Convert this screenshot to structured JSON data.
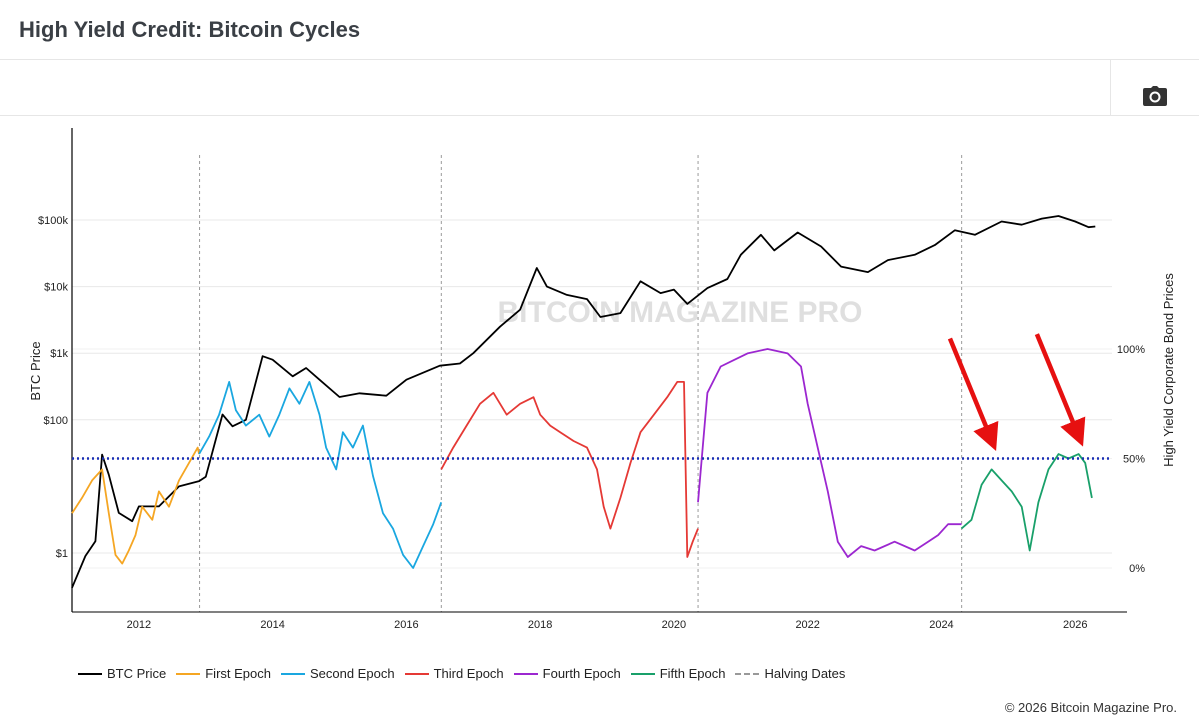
{
  "page": {
    "title": "High Yield Credit: Bitcoin Cycles",
    "footer": "© 2026 Bitcoin Magazine Pro.",
    "camera_icon": "camera-icon"
  },
  "chart_data": {
    "type": "line",
    "title": "High Yield Credit: Bitcoin Cycles",
    "xlabel": "",
    "ylabel": "BTC Price",
    "ylabel_right": "High Yield Corporate Bond Prices",
    "y_scale": "log",
    "x_ticks": [
      "2012",
      "2014",
      "2016",
      "2018",
      "2020",
      "2022",
      "2024",
      "2026"
    ],
    "y_ticks": [
      "$1",
      "$100",
      "$1k",
      "$10k",
      "$100k"
    ],
    "y_tick_values": [
      1,
      100,
      1000,
      10000,
      100000
    ],
    "y_right_ticks": [
      "0%",
      "50%",
      "100%"
    ],
    "y_right_tick_values": [
      0,
      50,
      100
    ],
    "ylim_right": [
      -15,
      135
    ],
    "reference_line": {
      "value": 50,
      "axis": "right",
      "color": "#1a2fb5",
      "style": "dotted"
    },
    "halving_dates": [
      "2012-11-28",
      "2016-07-09",
      "2020-05-11",
      "2024-04-20"
    ],
    "series": [
      {
        "name": "BTC Price",
        "color": "#000000",
        "axis": "left",
        "points": [
          [
            2011.0,
            0.3
          ],
          [
            2011.2,
            0.9
          ],
          [
            2011.35,
            1.5
          ],
          [
            2011.45,
            30
          ],
          [
            2011.55,
            15
          ],
          [
            2011.7,
            4
          ],
          [
            2011.9,
            3
          ],
          [
            2012.0,
            5
          ],
          [
            2012.3,
            5
          ],
          [
            2012.6,
            10
          ],
          [
            2012.9,
            12
          ],
          [
            2013.0,
            14
          ],
          [
            2013.25,
            120
          ],
          [
            2013.4,
            80
          ],
          [
            2013.6,
            100
          ],
          [
            2013.85,
            900
          ],
          [
            2014.0,
            800
          ],
          [
            2014.3,
            450
          ],
          [
            2014.5,
            600
          ],
          [
            2014.7,
            400
          ],
          [
            2015.0,
            220
          ],
          [
            2015.3,
            250
          ],
          [
            2015.7,
            230
          ],
          [
            2016.0,
            400
          ],
          [
            2016.5,
            650
          ],
          [
            2016.8,
            700
          ],
          [
            2017.0,
            1000
          ],
          [
            2017.4,
            2500
          ],
          [
            2017.7,
            4500
          ],
          [
            2017.95,
            19000
          ],
          [
            2018.1,
            10000
          ],
          [
            2018.4,
            7500
          ],
          [
            2018.7,
            6500
          ],
          [
            2018.9,
            3500
          ],
          [
            2019.2,
            4000
          ],
          [
            2019.5,
            12000
          ],
          [
            2019.8,
            8000
          ],
          [
            2020.0,
            9000
          ],
          [
            2020.2,
            5500
          ],
          [
            2020.5,
            9500
          ],
          [
            2020.8,
            13000
          ],
          [
            2021.0,
            30000
          ],
          [
            2021.3,
            60000
          ],
          [
            2021.5,
            35000
          ],
          [
            2021.85,
            65000
          ],
          [
            2022.2,
            40000
          ],
          [
            2022.5,
            20000
          ],
          [
            2022.9,
            16500
          ],
          [
            2023.2,
            25000
          ],
          [
            2023.6,
            30000
          ],
          [
            2023.9,
            42000
          ],
          [
            2024.2,
            70000
          ],
          [
            2024.5,
            60000
          ],
          [
            2024.9,
            95000
          ],
          [
            2025.2,
            85000
          ],
          [
            2025.5,
            105000
          ],
          [
            2025.75,
            115000
          ],
          [
            2026.0,
            95000
          ],
          [
            2026.2,
            78000
          ],
          [
            2026.3,
            80000
          ]
        ]
      },
      {
        "name": "First Epoch",
        "color": "#f5a623",
        "axis": "right",
        "points": [
          [
            2011.0,
            25
          ],
          [
            2011.15,
            32
          ],
          [
            2011.3,
            40
          ],
          [
            2011.45,
            45
          ],
          [
            2011.55,
            25
          ],
          [
            2011.65,
            6
          ],
          [
            2011.75,
            2
          ],
          [
            2011.85,
            8
          ],
          [
            2011.95,
            15
          ],
          [
            2012.05,
            28
          ],
          [
            2012.2,
            22
          ],
          [
            2012.3,
            35
          ],
          [
            2012.45,
            28
          ],
          [
            2012.6,
            40
          ],
          [
            2012.75,
            48
          ],
          [
            2012.88,
            55
          ],
          [
            2012.9,
            52
          ]
        ]
      },
      {
        "name": "Second Epoch",
        "color": "#1aa7e0",
        "axis": "right",
        "points": [
          [
            2012.9,
            52
          ],
          [
            2013.05,
            60
          ],
          [
            2013.2,
            70
          ],
          [
            2013.35,
            85
          ],
          [
            2013.45,
            72
          ],
          [
            2013.6,
            65
          ],
          [
            2013.8,
            70
          ],
          [
            2013.95,
            60
          ],
          [
            2014.1,
            70
          ],
          [
            2014.25,
            82
          ],
          [
            2014.4,
            75
          ],
          [
            2014.55,
            85
          ],
          [
            2014.7,
            70
          ],
          [
            2014.8,
            55
          ],
          [
            2014.95,
            45
          ],
          [
            2015.05,
            62
          ],
          [
            2015.2,
            55
          ],
          [
            2015.35,
            65
          ],
          [
            2015.5,
            42
          ],
          [
            2015.65,
            25
          ],
          [
            2015.8,
            18
          ],
          [
            2015.95,
            6
          ],
          [
            2016.1,
            0
          ],
          [
            2016.25,
            10
          ],
          [
            2016.4,
            20
          ],
          [
            2016.52,
            30
          ]
        ]
      },
      {
        "name": "Third Epoch",
        "color": "#e53935",
        "axis": "right",
        "points": [
          [
            2016.52,
            45
          ],
          [
            2016.7,
            55
          ],
          [
            2016.9,
            65
          ],
          [
            2017.1,
            75
          ],
          [
            2017.3,
            80
          ],
          [
            2017.5,
            70
          ],
          [
            2017.7,
            75
          ],
          [
            2017.9,
            78
          ],
          [
            2018.0,
            70
          ],
          [
            2018.15,
            65
          ],
          [
            2018.3,
            62
          ],
          [
            2018.5,
            58
          ],
          [
            2018.7,
            55
          ],
          [
            2018.85,
            45
          ],
          [
            2018.95,
            28
          ],
          [
            2019.05,
            18
          ],
          [
            2019.2,
            32
          ],
          [
            2019.35,
            48
          ],
          [
            2019.5,
            62
          ],
          [
            2019.7,
            70
          ],
          [
            2019.9,
            78
          ],
          [
            2020.05,
            85
          ],
          [
            2020.15,
            85
          ],
          [
            2020.2,
            5
          ],
          [
            2020.28,
            12
          ],
          [
            2020.36,
            18
          ]
        ]
      },
      {
        "name": "Fourth Epoch",
        "color": "#9c27d0",
        "axis": "right",
        "points": [
          [
            2020.36,
            30
          ],
          [
            2020.5,
            80
          ],
          [
            2020.7,
            92
          ],
          [
            2020.9,
            95
          ],
          [
            2021.1,
            98
          ],
          [
            2021.4,
            100
          ],
          [
            2021.7,
            98
          ],
          [
            2021.9,
            92
          ],
          [
            2022.0,
            75
          ],
          [
            2022.15,
            55
          ],
          [
            2022.3,
            35
          ],
          [
            2022.45,
            12
          ],
          [
            2022.6,
            5
          ],
          [
            2022.8,
            10
          ],
          [
            2023.0,
            8
          ],
          [
            2023.3,
            12
          ],
          [
            2023.6,
            8
          ],
          [
            2023.8,
            12
          ],
          [
            2023.95,
            15
          ],
          [
            2024.1,
            20
          ],
          [
            2024.3,
            20
          ]
        ]
      },
      {
        "name": "Fifth Epoch",
        "color": "#19a06a",
        "axis": "right",
        "points": [
          [
            2024.3,
            18
          ],
          [
            2024.45,
            22
          ],
          [
            2024.6,
            38
          ],
          [
            2024.75,
            45
          ],
          [
            2024.9,
            40
          ],
          [
            2025.05,
            35
          ],
          [
            2025.2,
            28
          ],
          [
            2025.32,
            8
          ],
          [
            2025.45,
            30
          ],
          [
            2025.6,
            45
          ],
          [
            2025.75,
            52
          ],
          [
            2025.9,
            50
          ],
          [
            2026.05,
            52
          ],
          [
            2026.15,
            48
          ],
          [
            2026.25,
            32
          ]
        ]
      }
    ],
    "legend": {
      "placement": "bottom-left",
      "items": [
        {
          "label": "BTC Price",
          "color": "#000000",
          "style": "solid"
        },
        {
          "label": "First Epoch",
          "color": "#f5a623",
          "style": "solid"
        },
        {
          "label": "Second Epoch",
          "color": "#1aa7e0",
          "style": "solid"
        },
        {
          "label": "Third Epoch",
          "color": "#e53935",
          "style": "solid"
        },
        {
          "label": "Fourth Epoch",
          "color": "#9c27d0",
          "style": "solid"
        },
        {
          "label": "Fifth Epoch",
          "color": "#19a06a",
          "style": "solid"
        },
        {
          "label": "Halving Dates",
          "color": "#999999",
          "style": "dashed"
        }
      ]
    },
    "annotations": [
      {
        "type": "arrow",
        "color": "#e61010",
        "target_x": 2024.8,
        "target_value": 50
      },
      {
        "type": "arrow",
        "color": "#e61010",
        "target_x": 2026.1,
        "target_value": 52
      }
    ],
    "watermark": "BITCOIN MAGAZINE PRO",
    "grid": "horizontal"
  }
}
